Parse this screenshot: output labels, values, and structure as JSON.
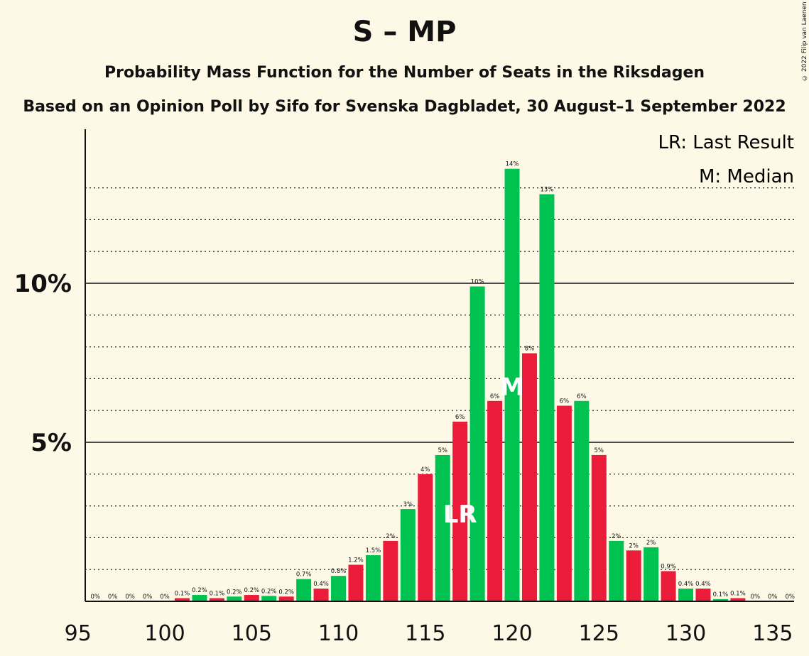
{
  "title": "S – MP",
  "subtitle": "Probability Mass Function for the Number of Seats in the Riksdagen",
  "subtitle2": "Based on an Opinion Poll by Sifo for Svenska Dagbladet, 30 August–1 September 2022",
  "copyright": "© 2022 Filip van Laenen",
  "legend": {
    "last_result": "LR: Last Result",
    "median": "M: Median"
  },
  "colors": {
    "green": "#00c250",
    "red": "#eb1c3a",
    "background": "#fef9e6"
  },
  "chart_data": {
    "type": "bar",
    "x_ticks": [
      "95",
      "100",
      "105",
      "110",
      "115",
      "120",
      "125",
      "130",
      "135"
    ],
    "y_ticks": [
      "5%",
      "10%"
    ],
    "ylim": [
      0,
      14.8
    ],
    "xlim": [
      94.5,
      135.5
    ],
    "bars": [
      {
        "seat": 96,
        "value": 0,
        "label": "0%",
        "color": "green"
      },
      {
        "seat": 97,
        "value": 0,
        "label": "0%",
        "color": "red"
      },
      {
        "seat": 98,
        "value": 0,
        "label": "0%",
        "color": "green"
      },
      {
        "seat": 99,
        "value": 0,
        "label": "0%",
        "color": "red"
      },
      {
        "seat": 100,
        "value": 0,
        "label": "0%",
        "color": "green"
      },
      {
        "seat": 101,
        "value": 0.1,
        "label": "0.1%",
        "color": "red"
      },
      {
        "seat": 102,
        "value": 0.2,
        "label": "0.2%",
        "color": "green"
      },
      {
        "seat": 103,
        "value": 0.1,
        "label": "0.1%",
        "color": "red"
      },
      {
        "seat": 104,
        "value": 0.15,
        "label": "0.2%",
        "color": "green"
      },
      {
        "seat": 105,
        "value": 0.2,
        "label": "0.2%",
        "color": "red"
      },
      {
        "seat": 106,
        "value": 0.17,
        "label": "0.2%",
        "color": "green"
      },
      {
        "seat": 107,
        "value": 0.15,
        "label": "0.2%",
        "color": "red"
      },
      {
        "seat": 108,
        "value": 0.7,
        "label": "0.7%",
        "color": "green"
      },
      {
        "seat": 109,
        "value": 0.4,
        "label": "0.4%",
        "color": "red"
      },
      {
        "seat": 110,
        "value": 0.8,
        "label": "0.8%",
        "color": "green"
      },
      {
        "seat": 111,
        "value": 1.15,
        "label": "1.2%",
        "color": "red"
      },
      {
        "seat": 112,
        "value": 1.45,
        "label": "1.5%",
        "color": "green"
      },
      {
        "seat": 113,
        "value": 1.9,
        "label": "2%",
        "color": "red"
      },
      {
        "seat": 114,
        "value": 2.9,
        "label": "3%",
        "color": "green"
      },
      {
        "seat": 115,
        "value": 4.0,
        "label": "4%",
        "color": "red"
      },
      {
        "seat": 116,
        "value": 4.6,
        "label": "5%",
        "color": "green"
      },
      {
        "seat": 117,
        "value": 5.65,
        "label": "6%",
        "color": "red"
      },
      {
        "seat": 118,
        "value": 9.9,
        "label": "10%",
        "color": "green"
      },
      {
        "seat": 119,
        "value": 6.3,
        "label": "6%",
        "color": "red"
      },
      {
        "seat": 120,
        "value": 13.6,
        "label": "14%",
        "color": "green"
      },
      {
        "seat": 121,
        "value": 7.8,
        "label": "8%",
        "color": "red"
      },
      {
        "seat": 122,
        "value": 12.8,
        "label": "13%",
        "color": "green"
      },
      {
        "seat": 123,
        "value": 6.15,
        "label": "6%",
        "color": "red"
      },
      {
        "seat": 124,
        "value": 6.3,
        "label": "6%",
        "color": "green"
      },
      {
        "seat": 125,
        "value": 4.6,
        "label": "5%",
        "color": "red"
      },
      {
        "seat": 126,
        "value": 1.9,
        "label": "2%",
        "color": "green"
      },
      {
        "seat": 127,
        "value": 1.6,
        "label": "2%",
        "color": "red"
      },
      {
        "seat": 128,
        "value": 1.7,
        "label": "2%",
        "color": "green"
      },
      {
        "seat": 129,
        "value": 0.95,
        "label": "0.9%",
        "color": "red"
      },
      {
        "seat": 130,
        "value": 0.4,
        "label": "0.4%",
        "color": "green"
      },
      {
        "seat": 131,
        "value": 0.4,
        "label": "0.4%",
        "color": "red"
      },
      {
        "seat": 132,
        "value": 0.07,
        "label": "0.1%",
        "color": "green"
      },
      {
        "seat": 133,
        "value": 0.1,
        "label": "0.1%",
        "color": "red"
      },
      {
        "seat": 134,
        "value": 0,
        "label": "0%",
        "color": "green"
      },
      {
        "seat": 135,
        "value": 0,
        "label": "0%",
        "color": "red"
      },
      {
        "seat": 136,
        "value": 0,
        "label": "0%",
        "color": "green"
      }
    ],
    "markers": [
      {
        "text": "LR",
        "seat": 117,
        "value": 2.75
      },
      {
        "text": "M",
        "seat": 120,
        "value": 6.75
      }
    ]
  }
}
